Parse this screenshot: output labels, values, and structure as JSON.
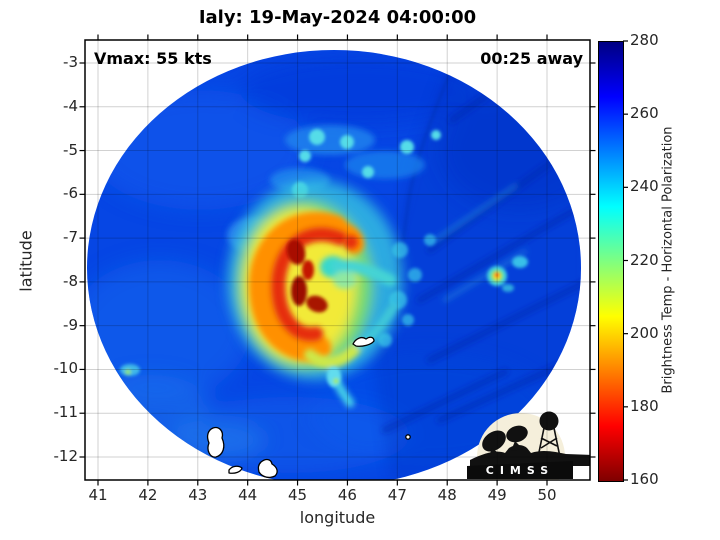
{
  "title": "Ialy: 19-May-2024 04:00:00",
  "annotations": {
    "vmax": "Vmax: 55 kts",
    "eta": "00:25 away"
  },
  "axes": {
    "xlabel": "longitude",
    "ylabel": "latitude",
    "xticks": [
      41,
      42,
      43,
      44,
      45,
      46,
      47,
      48,
      49,
      50
    ],
    "yticks": [
      -3,
      -4,
      -5,
      -6,
      -7,
      -8,
      -9,
      -10,
      -11,
      -12
    ]
  },
  "colorbar": {
    "label": "Brightness Temp - Horizontal Polarization",
    "ticks": [
      280,
      260,
      240,
      220,
      200,
      180,
      160
    ],
    "min": 160,
    "max": 280,
    "stops": [
      {
        "value": 160,
        "color": "#7f0000"
      },
      {
        "value": 175,
        "color": "#ff0000"
      },
      {
        "value": 205,
        "color": "#ffff00"
      },
      {
        "value": 235,
        "color": "#00ffff"
      },
      {
        "value": 265,
        "color": "#0000ff"
      },
      {
        "value": 280,
        "color": "#000083"
      }
    ]
  },
  "logo": {
    "text": "CIMSS"
  },
  "colors": {
    "ocean_blue": "#0646e4",
    "core_dark_red": "#9c0a00",
    "core_yellow": "#f2ea38",
    "grid": "rgba(0,0,0,0.18)"
  },
  "chart_data": {
    "type": "heatmap",
    "title": "Ialy: 19-May-2024 04:00:00",
    "xlabel": "longitude",
    "ylabel": "latitude",
    "xlim": [
      40.74,
      50.86
    ],
    "ylim": [
      -12.53,
      -2.47
    ],
    "xticks": [
      41,
      42,
      43,
      44,
      45,
      46,
      47,
      48,
      49,
      50
    ],
    "yticks": [
      -3,
      -4,
      -5,
      -6,
      -7,
      -8,
      -9,
      -10,
      -11,
      -12
    ],
    "grid": true,
    "legend_position": "right colorbar",
    "colorbar": {
      "label": "Brightness Temp - Horizontal Polarization",
      "range": [
        160,
        280
      ],
      "ticks": [
        160,
        180,
        200,
        220,
        240,
        260,
        280
      ],
      "colormap": "reversed jet (dark red = 160 K cold, dark blue = 280 K warm)"
    },
    "annotations": [
      {
        "text": "Vmax: 55 kts",
        "position": "top-left"
      },
      {
        "text": "00:25 away",
        "position": "top-right"
      }
    ],
    "scene": {
      "description": "Circular passive-microwave brightness-temperature swath of Tropical Cyclone Ialy over the Indian Ocean; warm ocean background in blue, cold convective core in yellow/red",
      "swath_center": {
        "lon": 45.7,
        "lat": -7.7
      },
      "swath_radius_lon_deg": 4.95,
      "swath_radius_lat_deg": 4.95,
      "background_temp_K": [
        250,
        265
      ],
      "storm_center": {
        "lon": 45.2,
        "lat": -7.9
      },
      "core_min_temp_K": 165,
      "features": [
        {
          "name": "C-shaped cold convective core opening east",
          "lon": 45.2,
          "lat": -7.9,
          "temp_K": "160-210"
        },
        {
          "name": "warmer notch / hook center east of core",
          "lon": 45.7,
          "lat": -7.9,
          "temp_K": 235
        },
        {
          "name": "yellow-green tail curling south of core",
          "lon": 45.3,
          "lat": -9.1,
          "temp_K": 215
        },
        {
          "name": "isolated small cold cell",
          "lon": 49.0,
          "lat": -7.85,
          "temp_K": 195
        },
        {
          "name": "fragmented cyan band north of core",
          "lon": 45.5,
          "lat": -5.3,
          "temp_K": 240
        },
        {
          "name": "small cold streak south of core",
          "lon": 45.0,
          "lat": -10.0,
          "temp_K": 240
        },
        {
          "name": "swath-edge boundary with streaky texture on east half",
          "lon": 47.5,
          "lat": -8.0
        },
        {
          "name": "island coastline contours (white outlines)",
          "lon": 43.4,
          "lat": -12.1
        },
        {
          "name": "small island contour near storm",
          "lon": 46.35,
          "lat": -9.35
        }
      ]
    }
  }
}
